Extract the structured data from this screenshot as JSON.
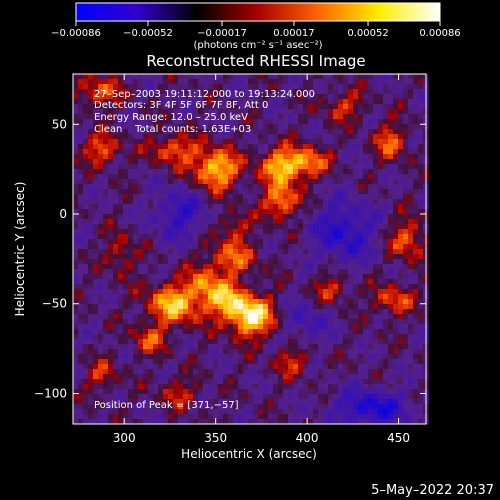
{
  "chart_data": {
    "type": "heatmap",
    "title": "Reconstructed RHESSI Image",
    "xlabel": "Heliocentric X (arcsec)",
    "ylabel": "Heliocentric Y (arcsec)",
    "xlim": [
      272,
      465
    ],
    "ylim": [
      -117,
      78
    ],
    "xticks": [
      300,
      350,
      400,
      450
    ],
    "xtick_labels": [
      "300",
      "350",
      "400",
      "450"
    ],
    "yticks": [
      -100,
      -50,
      0,
      50
    ],
    "ytick_labels": [
      "−100",
      "−50",
      "0",
      "50"
    ],
    "colorbar": {
      "range": [
        -0.00086,
        0.00086
      ],
      "ticks": [
        -0.00086,
        -0.00052,
        -0.00017,
        0.00017,
        0.00052,
        0.00086
      ],
      "tick_labels": [
        "−0.00086",
        "−0.00052",
        "−0.00017",
        "0.00017",
        "0.00052",
        "0.00086"
      ],
      "unit_label": "(photons cm⁻² s⁻¹ asec⁻²)",
      "colormap": [
        "#0000ff",
        "#3300cc",
        "#000000",
        "#aa0000",
        "#ff6600",
        "#ffee00",
        "#ffffff"
      ]
    },
    "annotations": [
      "27–Sep–2003 19:11:12.000 to 19:13:24.000",
      "Detectors: 3F 4F 5F 6F 7F 8F, Att 0",
      "Energy Range: 12.0 – 25.0 keV",
      "Clean    Total counts: 1.63E+03",
      "Position of Peak = [371,−57]"
    ],
    "blobs": [
      {
        "x": 369,
        "y": -57,
        "amp": 1.0,
        "sx": 9,
        "sy": 8
      },
      {
        "x": 355,
        "y": -47,
        "amp": 0.65,
        "sx": 8,
        "sy": 7
      },
      {
        "x": 328,
        "y": -50,
        "amp": 0.8,
        "sx": 11,
        "sy": 8
      },
      {
        "x": 343,
        "y": -38,
        "amp": 0.45,
        "sx": 6,
        "sy": 6
      },
      {
        "x": 358,
        "y": -25,
        "amp": 0.55,
        "sx": 10,
        "sy": 7
      },
      {
        "x": 360,
        "y": -7,
        "amp": 0.4,
        "sx": 6,
        "sy": 6
      },
      {
        "x": 314,
        "y": -70,
        "amp": 0.45,
        "sx": 7,
        "sy": 6
      },
      {
        "x": 298,
        "y": -22,
        "amp": 0.38,
        "sx": 6,
        "sy": 8
      },
      {
        "x": 350,
        "y": 25,
        "amp": 0.85,
        "sx": 9,
        "sy": 8
      },
      {
        "x": 387,
        "y": 27,
        "amp": 0.8,
        "sx": 9,
        "sy": 7
      },
      {
        "x": 386,
        "y": 7,
        "amp": 0.7,
        "sx": 7,
        "sy": 7
      },
      {
        "x": 402,
        "y": 29,
        "amp": 0.5,
        "sx": 7,
        "sy": 6
      },
      {
        "x": 327,
        "y": 36,
        "amp": 0.55,
        "sx": 9,
        "sy": 6
      },
      {
        "x": 288,
        "y": 36,
        "amp": 0.55,
        "sx": 7,
        "sy": 6
      },
      {
        "x": 286,
        "y": 68,
        "amp": 0.55,
        "sx": 8,
        "sy": 6
      },
      {
        "x": 446,
        "y": 40,
        "amp": 0.55,
        "sx": 6,
        "sy": 7
      },
      {
        "x": 455,
        "y": -14,
        "amp": 0.55,
        "sx": 7,
        "sy": 8
      },
      {
        "x": 447,
        "y": -48,
        "amp": 0.5,
        "sx": 8,
        "sy": 6
      },
      {
        "x": 413,
        "y": -42,
        "amp": 0.45,
        "sx": 7,
        "sy": 6
      },
      {
        "x": 392,
        "y": -82,
        "amp": 0.4,
        "sx": 7,
        "sy": 6
      },
      {
        "x": 288,
        "y": -90,
        "amp": 0.4,
        "sx": 6,
        "sy": 6
      },
      {
        "x": 330,
        "y": -100,
        "amp": 0.35,
        "sx": 8,
        "sy": 6
      },
      {
        "x": 420,
        "y": 60,
        "amp": 0.4,
        "sx": 8,
        "sy": 6
      },
      {
        "x": 420,
        "y": -10,
        "amp": -0.6,
        "sx": 12,
        "sy": 12
      },
      {
        "x": 435,
        "y": -108,
        "amp": -0.7,
        "sx": 14,
        "sy": 7
      },
      {
        "x": 330,
        "y": 0,
        "amp": -0.5,
        "sx": 10,
        "sy": 10
      },
      {
        "x": 400,
        "y": -60,
        "amp": -0.35,
        "sx": 9,
        "sy": 9
      }
    ]
  },
  "footer": {
    "timestamp": "5–May–2022 20:37"
  }
}
